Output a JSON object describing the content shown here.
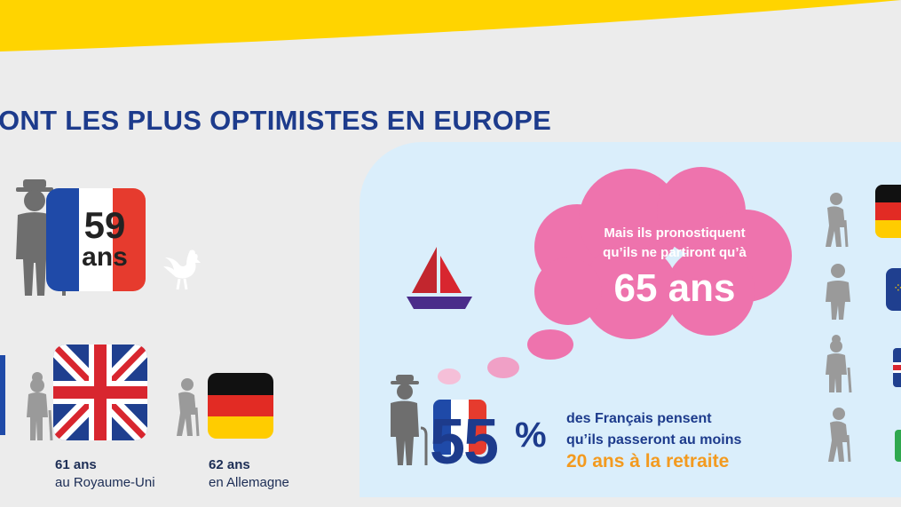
{
  "heading": "ONT LES PLUS OPTIMISTES EN EUROPE",
  "france": {
    "age_number": "59",
    "age_unit": "ans"
  },
  "uk": {
    "age": "61 ans",
    "country": "au Royaume-Uni"
  },
  "germany": {
    "age": "62 ans",
    "country": "en Allemagne"
  },
  "cloud": {
    "line1": "Mais ils pronostiquent",
    "line2": "qu’ils ne partiront qu’à",
    "big": "65 ans"
  },
  "stat": {
    "number": "55",
    "sign": "%",
    "line1": "des Français pensent",
    "line2": "qu’ils passeront au moins",
    "highlight": "20 ans à la retraite"
  },
  "colors": {
    "yellow": "#ffd400",
    "navy": "#1d3b8c",
    "pink": "#ee73ad",
    "orange": "#f39a1f",
    "panel": "#daeefb",
    "gray": "#6e6e6e"
  }
}
